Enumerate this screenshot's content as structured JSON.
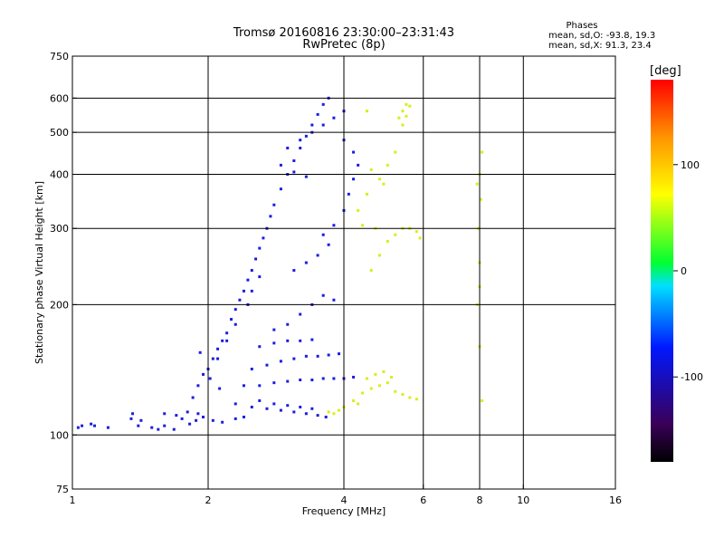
{
  "chart_data": {
    "type": "scatter",
    "title": "Tromsø 20160816 23:30:00–23:31:43",
    "subtitle": "RwPretec (8p)",
    "xlabel": "Frequency [MHz]",
    "ylabel": "Stationary phase Virtual Height [km]",
    "x_scale": "log",
    "y_scale": "log",
    "xlim": [
      1,
      16
    ],
    "ylim": [
      75,
      750
    ],
    "x_ticks": [
      1,
      2,
      4,
      6,
      8,
      10,
      16
    ],
    "y_ticks": [
      75,
      100,
      200,
      300,
      400,
      500,
      600,
      750
    ],
    "x_grid": [
      2,
      4,
      6,
      8,
      10
    ],
    "y_grid": [
      100,
      200,
      300,
      400,
      500,
      600
    ],
    "grid": true,
    "phase_stats": {
      "title": "Phases",
      "line_o": "mean, sd,O: -93.8, 19.3",
      "line_x": "mean, sd,X:  91.3, 23.4"
    },
    "colorbar": {
      "label": "[deg]",
      "range": [
        -180,
        180
      ],
      "ticks": [
        100,
        0,
        -100
      ],
      "colormap": [
        "#000000",
        "#3a0058",
        "#0018ff",
        "#00dfff",
        "#00ff33",
        "#ffff00",
        "#ff9400",
        "#ff0000"
      ]
    },
    "series": [
      {
        "name": "O",
        "color": "#1d1dde",
        "points": [
          [
            1.03,
            104
          ],
          [
            1.05,
            105
          ],
          [
            1.1,
            106
          ],
          [
            1.12,
            105
          ],
          [
            1.2,
            104
          ],
          [
            1.35,
            109
          ],
          [
            1.36,
            112
          ],
          [
            1.4,
            105
          ],
          [
            1.42,
            108
          ],
          [
            1.5,
            104
          ],
          [
            1.55,
            103
          ],
          [
            1.6,
            105
          ],
          [
            1.68,
            103
          ],
          [
            1.75,
            109
          ],
          [
            1.82,
            106
          ],
          [
            1.88,
            108
          ],
          [
            1.95,
            110
          ],
          [
            2.05,
            108
          ],
          [
            2.15,
            107
          ],
          [
            2.3,
            109
          ],
          [
            2.4,
            110
          ],
          [
            1.6,
            112
          ],
          [
            1.7,
            111
          ],
          [
            1.8,
            113
          ],
          [
            1.9,
            112
          ],
          [
            1.85,
            122
          ],
          [
            1.9,
            130
          ],
          [
            1.95,
            138
          ],
          [
            2.0,
            142
          ],
          [
            2.05,
            150
          ],
          [
            2.1,
            158
          ],
          [
            2.15,
            165
          ],
          [
            2.2,
            172
          ],
          [
            1.92,
            155
          ],
          [
            2.02,
            135
          ],
          [
            2.12,
            128
          ],
          [
            2.25,
            185
          ],
          [
            2.3,
            195
          ],
          [
            2.35,
            205
          ],
          [
            2.4,
            215
          ],
          [
            2.45,
            228
          ],
          [
            2.5,
            240
          ],
          [
            2.55,
            255
          ],
          [
            2.6,
            270
          ],
          [
            2.65,
            285
          ],
          [
            2.7,
            300
          ],
          [
            2.75,
            320
          ],
          [
            2.8,
            340
          ],
          [
            2.9,
            370
          ],
          [
            3.0,
            400
          ],
          [
            3.1,
            430
          ],
          [
            3.2,
            460
          ],
          [
            3.3,
            490
          ],
          [
            3.4,
            520
          ],
          [
            3.5,
            550
          ],
          [
            3.6,
            580
          ],
          [
            3.7,
            600
          ],
          [
            2.45,
            200
          ],
          [
            2.5,
            215
          ],
          [
            2.6,
            232
          ],
          [
            2.3,
            180
          ],
          [
            2.2,
            165
          ],
          [
            2.1,
            150
          ],
          [
            2.3,
            118
          ],
          [
            2.5,
            116
          ],
          [
            2.7,
            115
          ],
          [
            2.9,
            114
          ],
          [
            3.1,
            113
          ],
          [
            3.3,
            112
          ],
          [
            3.5,
            111
          ],
          [
            3.65,
            110
          ],
          [
            2.6,
            120
          ],
          [
            2.8,
            118
          ],
          [
            3.0,
            117
          ],
          [
            3.2,
            116
          ],
          [
            3.4,
            115
          ],
          [
            2.4,
            130
          ],
          [
            2.6,
            130
          ],
          [
            2.8,
            132
          ],
          [
            3.0,
            133
          ],
          [
            3.2,
            134
          ],
          [
            3.4,
            134
          ],
          [
            3.6,
            135
          ],
          [
            3.8,
            135
          ],
          [
            4.0,
            135
          ],
          [
            4.2,
            136
          ],
          [
            2.5,
            142
          ],
          [
            2.7,
            145
          ],
          [
            2.9,
            148
          ],
          [
            3.1,
            150
          ],
          [
            3.3,
            152
          ],
          [
            3.5,
            152
          ],
          [
            3.7,
            153
          ],
          [
            3.9,
            154
          ],
          [
            2.6,
            160
          ],
          [
            2.8,
            163
          ],
          [
            3.0,
            165
          ],
          [
            3.2,
            165
          ],
          [
            3.4,
            166
          ],
          [
            2.8,
            175
          ],
          [
            3.0,
            180
          ],
          [
            3.2,
            190
          ],
          [
            3.4,
            200
          ],
          [
            3.6,
            210
          ],
          [
            3.8,
            205
          ],
          [
            3.1,
            240
          ],
          [
            3.3,
            250
          ],
          [
            3.5,
            260
          ],
          [
            3.7,
            275
          ],
          [
            3.6,
            290
          ],
          [
            3.8,
            305
          ],
          [
            4.0,
            330
          ],
          [
            4.1,
            360
          ],
          [
            4.2,
            390
          ],
          [
            4.3,
            420
          ],
          [
            4.2,
            450
          ],
          [
            4.0,
            480
          ],
          [
            3.0,
            460
          ],
          [
            3.2,
            480
          ],
          [
            3.4,
            500
          ],
          [
            3.6,
            520
          ],
          [
            3.8,
            540
          ],
          [
            4.0,
            560
          ],
          [
            2.9,
            420
          ],
          [
            3.1,
            405
          ],
          [
            3.3,
            395
          ]
        ]
      },
      {
        "name": "X",
        "color": "#d8ee18",
        "points": [
          [
            3.7,
            113
          ],
          [
            3.8,
            112
          ],
          [
            3.9,
            114
          ],
          [
            4.0,
            116
          ],
          [
            4.2,
            120
          ],
          [
            4.4,
            125
          ],
          [
            4.6,
            128
          ],
          [
            4.8,
            130
          ],
          [
            5.0,
            132
          ],
          [
            5.2,
            126
          ],
          [
            5.4,
            124
          ],
          [
            5.6,
            122
          ],
          [
            5.8,
            121
          ],
          [
            4.5,
            135
          ],
          [
            4.7,
            138
          ],
          [
            4.9,
            140
          ],
          [
            5.1,
            136
          ],
          [
            4.3,
            118
          ],
          [
            4.6,
            240
          ],
          [
            4.8,
            260
          ],
          [
            5.0,
            280
          ],
          [
            5.2,
            290
          ],
          [
            5.4,
            300
          ],
          [
            5.6,
            300
          ],
          [
            5.8,
            295
          ],
          [
            5.9,
            285
          ],
          [
            4.4,
            305
          ],
          [
            4.7,
            300
          ],
          [
            5.3,
            540
          ],
          [
            5.4,
            560
          ],
          [
            5.5,
            580
          ],
          [
            5.6,
            575
          ],
          [
            5.4,
            520
          ],
          [
            5.5,
            545
          ],
          [
            4.5,
            360
          ],
          [
            4.8,
            390
          ],
          [
            5.0,
            420
          ],
          [
            5.2,
            450
          ],
          [
            4.6,
            410
          ],
          [
            4.3,
            330
          ],
          [
            4.5,
            560
          ],
          [
            4.9,
            380
          ],
          [
            8.1,
            120
          ],
          [
            8.0,
            160
          ],
          [
            7.9,
            200
          ],
          [
            8.0,
            250
          ],
          [
            7.95,
            300
          ],
          [
            8.05,
            350
          ],
          [
            8.0,
            400
          ],
          [
            8.1,
            450
          ],
          [
            7.9,
            380
          ],
          [
            8.0,
            220
          ]
        ]
      }
    ]
  }
}
